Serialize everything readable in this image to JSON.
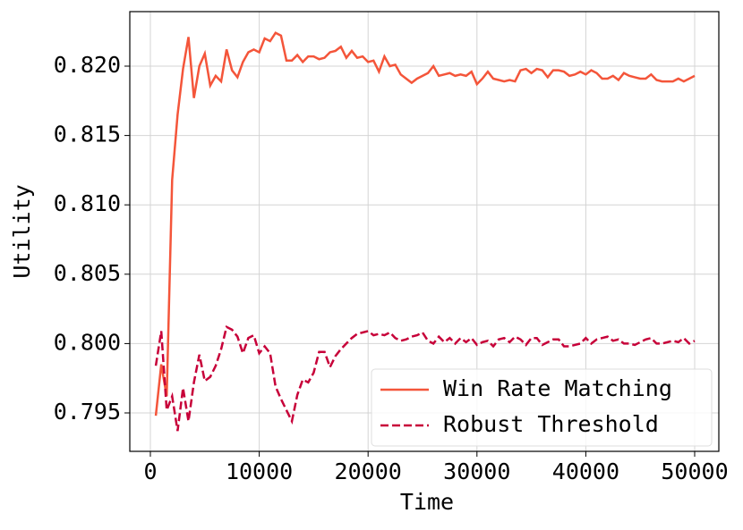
{
  "chart_data": {
    "type": "line",
    "x_label": "Time",
    "y_label": "Utility",
    "x": [
      500,
      1000,
      1500,
      2000,
      2500,
      3000,
      3500,
      4000,
      4500,
      5000,
      5500,
      6000,
      6500,
      7000,
      7500,
      8000,
      8500,
      9000,
      9500,
      10000,
      10500,
      11000,
      11500,
      12000,
      12500,
      13000,
      13500,
      14000,
      14500,
      15000,
      15500,
      16000,
      16500,
      17000,
      17500,
      18000,
      18500,
      19000,
      19500,
      20000,
      20500,
      21000,
      21500,
      22000,
      22500,
      23000,
      23500,
      24000,
      24500,
      25000,
      25500,
      26000,
      26500,
      27000,
      27500,
      28000,
      28500,
      29000,
      29500,
      30000,
      30500,
      31000,
      31500,
      32000,
      32500,
      33000,
      33500,
      34000,
      34500,
      35000,
      35500,
      36000,
      36500,
      37000,
      37500,
      38000,
      38500,
      39000,
      39500,
      40000,
      40500,
      41000,
      41500,
      42000,
      42500,
      43000,
      43500,
      44000,
      44500,
      45000,
      45500,
      46000,
      46500,
      47000,
      47500,
      48000,
      48500,
      49000,
      49500,
      50000
    ],
    "series": [
      {
        "name": "Win Rate Matching",
        "color": "#f4553a",
        "dash": "solid",
        "values": [
          0.7948,
          0.7985,
          0.7962,
          0.8118,
          0.8165,
          0.8198,
          0.8221,
          0.8177,
          0.82,
          0.8209,
          0.8186,
          0.8193,
          0.8189,
          0.8212,
          0.8197,
          0.8192,
          0.8203,
          0.821,
          0.8212,
          0.821,
          0.822,
          0.8218,
          0.8224,
          0.8222,
          0.8204,
          0.8204,
          0.8208,
          0.8203,
          0.8207,
          0.8207,
          0.8205,
          0.8206,
          0.821,
          0.8211,
          0.8214,
          0.8206,
          0.8211,
          0.8206,
          0.8207,
          0.8203,
          0.8204,
          0.8196,
          0.8207,
          0.82,
          0.8201,
          0.8194,
          0.8191,
          0.8188,
          0.8191,
          0.8193,
          0.8195,
          0.82,
          0.8193,
          0.8194,
          0.8195,
          0.8193,
          0.8194,
          0.8193,
          0.8196,
          0.8187,
          0.8191,
          0.8196,
          0.8191,
          0.819,
          0.8189,
          0.819,
          0.8189,
          0.8197,
          0.8198,
          0.8195,
          0.8198,
          0.8197,
          0.8192,
          0.8197,
          0.8197,
          0.8196,
          0.8193,
          0.8194,
          0.8196,
          0.8194,
          0.8197,
          0.8195,
          0.8191,
          0.8191,
          0.8193,
          0.819,
          0.8195,
          0.8193,
          0.8192,
          0.8191,
          0.8191,
          0.8194,
          0.819,
          0.8189,
          0.8189,
          0.8189,
          0.8191,
          0.8189,
          0.8191,
          0.8193
        ]
      },
      {
        "name": "Robust Threshold",
        "color": "#c70039",
        "dash": "dashed",
        "values": [
          0.7984,
          0.8009,
          0.7952,
          0.7962,
          0.7937,
          0.7968,
          0.7944,
          0.7972,
          0.7992,
          0.7973,
          0.7976,
          0.7984,
          0.7996,
          0.8012,
          0.801,
          0.8005,
          0.7993,
          0.8004,
          0.8006,
          0.7993,
          0.7998,
          0.7993,
          0.7969,
          0.796,
          0.7952,
          0.7944,
          0.7963,
          0.7974,
          0.7972,
          0.7979,
          0.7994,
          0.7994,
          0.7983,
          0.7991,
          0.7996,
          0.8,
          0.8004,
          0.8007,
          0.8008,
          0.8009,
          0.8006,
          0.8007,
          0.8006,
          0.8008,
          0.8004,
          0.8002,
          0.8003,
          0.8005,
          0.8006,
          0.8008,
          0.8002,
          0.8,
          0.8005,
          0.8001,
          0.8004,
          0.8,
          0.8004,
          0.8001,
          0.8004,
          0.7999,
          0.8001,
          0.8002,
          0.7998,
          0.8003,
          0.8004,
          0.8001,
          0.8005,
          0.8003,
          0.7999,
          0.8004,
          0.8004,
          0.7999,
          0.8001,
          0.8003,
          0.8003,
          0.7998,
          0.7998,
          0.7999,
          0.8,
          0.8004,
          0.8,
          0.8003,
          0.8004,
          0.8005,
          0.8002,
          0.8003,
          0.8,
          0.8,
          0.7999,
          0.8001,
          0.8003,
          0.8004,
          0.8,
          0.8,
          0.8001,
          0.8002,
          0.8001,
          0.8004,
          0.8,
          0.8002
        ]
      }
    ],
    "xlim": [
      -1890,
      52220
    ],
    "ylim": [
      0.79223,
      0.82393
    ],
    "xticks": [
      0,
      10000,
      20000,
      30000,
      40000,
      50000
    ],
    "yticks": [
      0.795,
      {
        "value": 0.8,
        "label": "0.800"
      },
      0.805,
      {
        "value": 0.81,
        "label": "0.810"
      },
      0.815,
      {
        "value": 0.82,
        "label": "0.820"
      }
    ],
    "grid": true,
    "legend": "lower right"
  }
}
